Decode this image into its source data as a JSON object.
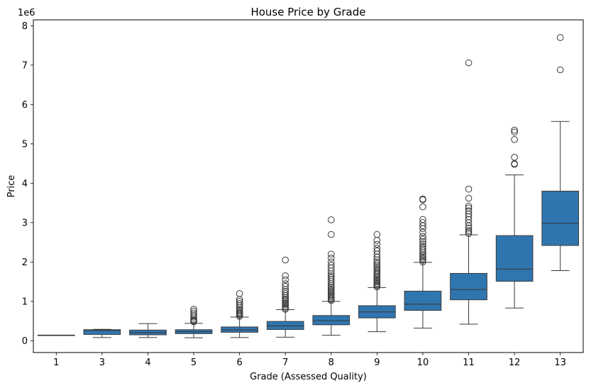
{
  "chart_data": {
    "type": "box",
    "title": "House Price by Grade",
    "xlabel": "Grade (Assessed Quality)",
    "ylabel": "Price",
    "y_offset_label": "1e6",
    "y_scale_factor": 1000000,
    "ylim": [
      -0.3,
      8.15
    ],
    "yticks": [
      0,
      1,
      2,
      3,
      4,
      5,
      6,
      7,
      8
    ],
    "grid": false,
    "box_color": "#2f76b0",
    "line_color": "#3a3a3a",
    "categories": [
      "1",
      "3",
      "4",
      "5",
      "6",
      "7",
      "8",
      "9",
      "10",
      "11",
      "12",
      "13"
    ],
    "boxes": [
      {
        "grade": "1",
        "whislo": 0.142,
        "q1": 0.142,
        "med": 0.142,
        "q3": 0.142,
        "whishi": 0.142,
        "fliers": []
      },
      {
        "grade": "3",
        "whislo": 0.08,
        "q1": 0.16,
        "med": 0.262,
        "q3": 0.28,
        "whishi": 0.29,
        "fliers": []
      },
      {
        "grade": "4",
        "whislo": 0.08,
        "q1": 0.15,
        "med": 0.205,
        "q3": 0.27,
        "whishi": 0.435,
        "fliers": []
      },
      {
        "grade": "5",
        "whislo": 0.075,
        "q1": 0.18,
        "med": 0.228,
        "q3": 0.28,
        "whishi": 0.44,
        "fliers": [
          0.48,
          0.5,
          0.52,
          0.55,
          0.6,
          0.65,
          0.7,
          0.75,
          0.8
        ]
      },
      {
        "grade": "6",
        "whislo": 0.08,
        "q1": 0.215,
        "med": 0.275,
        "q3": 0.35,
        "whishi": 0.6,
        "fliers": [
          0.62,
          0.65,
          0.68,
          0.7,
          0.73,
          0.77,
          0.8,
          0.85,
          0.9,
          0.95,
          1.0,
          1.05,
          1.2
        ]
      },
      {
        "grade": "7",
        "whislo": 0.09,
        "q1": 0.285,
        "med": 0.375,
        "q3": 0.49,
        "whishi": 0.79,
        "fliers": [
          0.8,
          0.83,
          0.86,
          0.9,
          0.93,
          0.96,
          1.0,
          1.03,
          1.06,
          1.1,
          1.15,
          1.2,
          1.25,
          1.3,
          1.38,
          1.45,
          1.55,
          1.65,
          2.05
        ]
      },
      {
        "grade": "8",
        "whislo": 0.14,
        "q1": 0.405,
        "med": 0.51,
        "q3": 0.64,
        "whishi": 1.0,
        "fliers": [
          1.02,
          1.05,
          1.08,
          1.11,
          1.14,
          1.17,
          1.2,
          1.24,
          1.28,
          1.32,
          1.36,
          1.4,
          1.45,
          1.5,
          1.55,
          1.6,
          1.65,
          1.7,
          1.77,
          1.85,
          1.92,
          2.0,
          2.1,
          2.2,
          2.7,
          3.07
        ]
      },
      {
        "grade": "9",
        "whislo": 0.23,
        "q1": 0.58,
        "med": 0.73,
        "q3": 0.89,
        "whishi": 1.35,
        "fliers": [
          1.37,
          1.4,
          1.43,
          1.46,
          1.5,
          1.53,
          1.56,
          1.6,
          1.63,
          1.67,
          1.7,
          1.74,
          1.78,
          1.82,
          1.86,
          1.9,
          1.95,
          2.0,
          2.05,
          2.12,
          2.2,
          2.28,
          2.35,
          2.45,
          2.55,
          2.7
        ]
      },
      {
        "grade": "10",
        "whislo": 0.32,
        "q1": 0.77,
        "med": 0.93,
        "q3": 1.26,
        "whishi": 1.99,
        "fliers": [
          2.0,
          2.04,
          2.08,
          2.12,
          2.16,
          2.2,
          2.25,
          2.3,
          2.35,
          2.4,
          2.46,
          2.52,
          2.58,
          2.65,
          2.75,
          2.85,
          2.92,
          3.0,
          3.08,
          3.4,
          3.58,
          3.6
        ]
      },
      {
        "grade": "11",
        "whislo": 0.42,
        "q1": 1.04,
        "med": 1.3,
        "q3": 1.71,
        "whishi": 2.69,
        "fliers": [
          2.72,
          2.76,
          2.8,
          2.86,
          2.92,
          3.0,
          3.08,
          3.15,
          3.22,
          3.3,
          3.37,
          3.42,
          3.62,
          3.85,
          7.06
        ]
      },
      {
        "grade": "12",
        "whislo": 0.83,
        "q1": 1.51,
        "med": 1.82,
        "q3": 2.67,
        "whishi": 4.21,
        "fliers": [
          4.48,
          4.5,
          4.66,
          5.11,
          5.3,
          5.35
        ]
      },
      {
        "grade": "13",
        "whislo": 1.78,
        "q1": 2.42,
        "med": 2.98,
        "q3": 3.8,
        "whishi": 5.57,
        "fliers": [
          6.88,
          7.7
        ]
      }
    ]
  }
}
